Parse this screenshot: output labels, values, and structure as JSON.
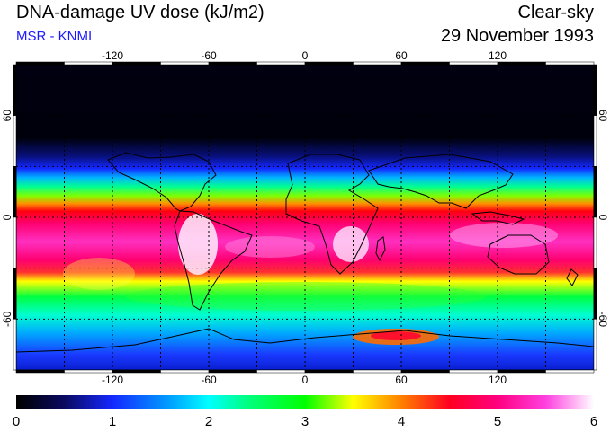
{
  "header": {
    "title": "DNA-damage UV dose (kJ/m2)",
    "source": "MSR - KNMI",
    "condition": "Clear-sky",
    "date": "29 November 1993"
  },
  "map": {
    "projection": "equirectangular",
    "lon_range": [
      -180,
      180
    ],
    "lat_range": [
      -90,
      90
    ],
    "lon_gridlines": [
      -150,
      -120,
      -90,
      -60,
      -30,
      0,
      30,
      60,
      90,
      120,
      150
    ],
    "lat_gridlines": [
      -60,
      -30,
      0,
      30,
      60
    ],
    "lon_labels": [
      "-120",
      "-60",
      "0",
      "60",
      "120"
    ],
    "lon_label_values": [
      -120,
      -60,
      0,
      60,
      120
    ],
    "lat_labels": [
      "60",
      "0",
      "-60"
    ],
    "lat_label_values": [
      60,
      0,
      -60
    ],
    "colors": {
      "polar_night": "#000010",
      "land_outline": "#000000",
      "grid": "#000000"
    }
  },
  "colorbar": {
    "min": 0,
    "max": 6,
    "tick_labels": [
      "0",
      "1",
      "2",
      "3",
      "4",
      "5",
      "6"
    ],
    "stops": [
      {
        "value": 0.0,
        "color": "#000000"
      },
      {
        "value": 0.5,
        "color": "#0a0a60"
      },
      {
        "value": 1.0,
        "color": "#1428ff"
      },
      {
        "value": 1.6,
        "color": "#00a0ff"
      },
      {
        "value": 2.0,
        "color": "#00ffff"
      },
      {
        "value": 2.4,
        "color": "#00ff80"
      },
      {
        "value": 3.0,
        "color": "#00ff00"
      },
      {
        "value": 3.5,
        "color": "#ffff00"
      },
      {
        "value": 4.0,
        "color": "#ff8000"
      },
      {
        "value": 4.5,
        "color": "#ff0020"
      },
      {
        "value": 5.0,
        "color": "#ff0080"
      },
      {
        "value": 5.5,
        "color": "#ff40e0"
      },
      {
        "value": 6.0,
        "color": "#ffffff"
      }
    ]
  }
}
